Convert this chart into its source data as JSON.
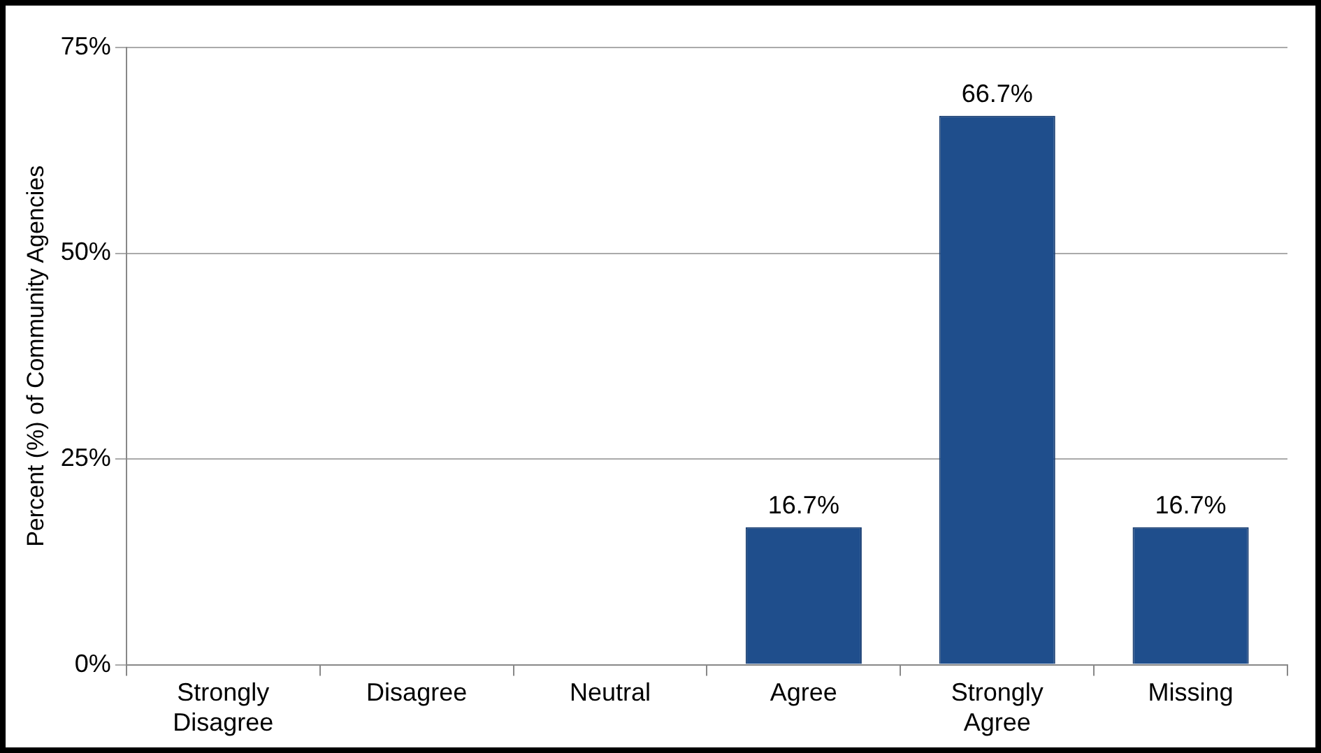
{
  "chart_data": {
    "type": "bar",
    "ylabel": "Percent (%) of Community Agencies",
    "categories": [
      "Strongly Disagree",
      "Disagree",
      "Neutral",
      "Agree",
      "Strongly Agree",
      "Missing"
    ],
    "values": [
      0,
      0,
      0,
      16.7,
      66.7,
      16.7
    ],
    "value_labels": [
      null,
      null,
      null,
      "16.7%",
      "66.7%",
      "16.7%"
    ],
    "color": "#1f4e8c",
    "ylim": [
      0,
      75
    ],
    "yticks": [
      {
        "value": 0,
        "label": "0%"
      },
      {
        "value": 25,
        "label": "25%"
      },
      {
        "value": 50,
        "label": "50%"
      },
      {
        "value": 75,
        "label": "75%"
      }
    ],
    "grid": "y",
    "legend": false
  }
}
